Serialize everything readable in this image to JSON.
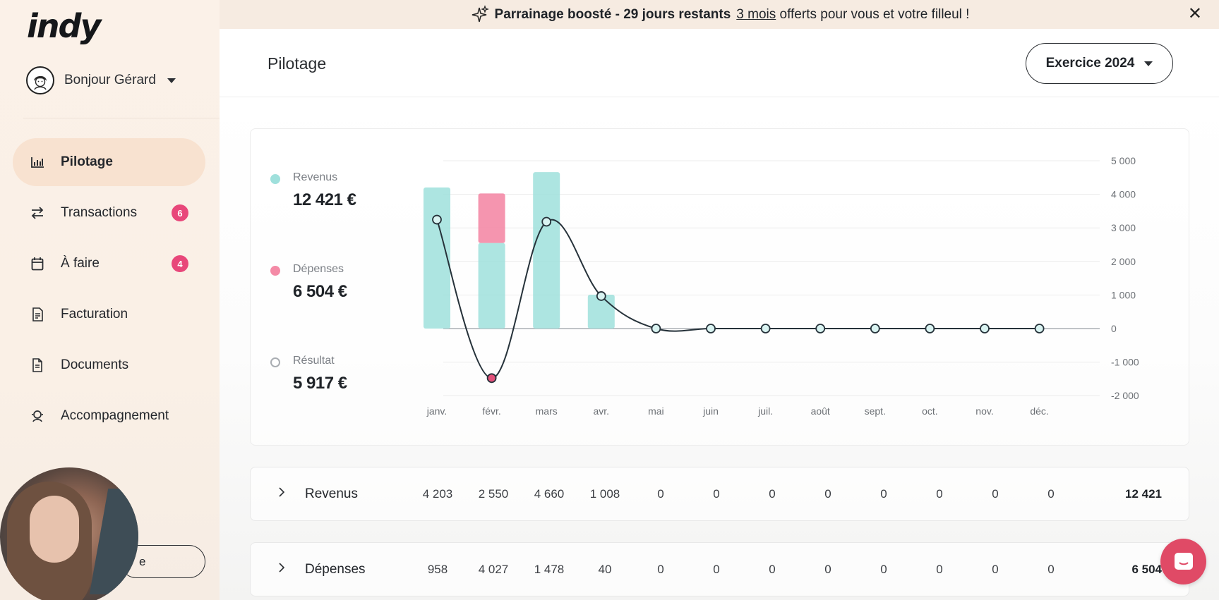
{
  "app": {
    "logo": "indy"
  },
  "user": {
    "greeting": "Bonjour Gérard"
  },
  "banner": {
    "bold": "Parrainage boosté - 29 jours restants",
    "link": "3 mois",
    "rest": "offerts pour vous et votre filleul !",
    "close_glyph": "✕"
  },
  "sidebar": {
    "items": [
      {
        "label": "Pilotage",
        "icon": "bar-chart-icon",
        "active": true
      },
      {
        "label": "Transactions",
        "icon": "swap-arrows-icon",
        "badge": "6"
      },
      {
        "label": "À faire",
        "icon": "calendar-icon",
        "badge": "4"
      },
      {
        "label": "Facturation",
        "icon": "invoice-icon"
      },
      {
        "label": "Documents",
        "icon": "document-icon"
      },
      {
        "label": "Accompagnement",
        "icon": "support-icon"
      }
    ],
    "bottom_button": "e"
  },
  "header": {
    "title": "Pilotage",
    "year_button": "Exercice 2024"
  },
  "summary": {
    "revenus_label": "Revenus",
    "revenus_value": "12 421 €",
    "depenses_label": "Dépenses",
    "depenses_value": "6 504 €",
    "resultat_label": "Résultat",
    "resultat_value": "5 917 €"
  },
  "colors": {
    "revenus": "#9fe0dc",
    "depenses": "#f48aa6",
    "line": "#26323a",
    "badge": "#e8477a",
    "chat": "#e04a66"
  },
  "chart_data": {
    "type": "bar",
    "categories": [
      "janv.",
      "févr.",
      "mars",
      "avr.",
      "mai",
      "juin",
      "juil.",
      "août",
      "sept.",
      "oct.",
      "nov.",
      "déc."
    ],
    "series": [
      {
        "name": "Revenus",
        "values": [
          4203,
          2550,
          4660,
          1008,
          0,
          0,
          0,
          0,
          0,
          0,
          0,
          0
        ],
        "kind": "bar"
      },
      {
        "name": "Dépenses",
        "values": [
          958,
          4027,
          1478,
          40,
          0,
          0,
          0,
          0,
          0,
          0,
          0,
          0
        ],
        "kind": "bar"
      },
      {
        "name": "Résultat",
        "values": [
          3245,
          -1477,
          3182,
          968,
          0,
          0,
          0,
          0,
          0,
          0,
          0,
          0
        ],
        "kind": "line"
      }
    ],
    "y_ticks": [
      "5 000",
      "4 000",
      "3 000",
      "2 000",
      "1 000",
      "0",
      "-1 000",
      "-2 000"
    ],
    "ylim": [
      -2000,
      5000
    ],
    "y_axis_side": "right",
    "grid": true
  },
  "table": {
    "rows": [
      {
        "label": "Revenus",
        "values": [
          "4 203",
          "2 550",
          "4 660",
          "1 008",
          "0",
          "0",
          "0",
          "0",
          "0",
          "0",
          "0",
          "0"
        ],
        "total": "12 421"
      },
      {
        "label": "Dépenses",
        "values": [
          "958",
          "4 027",
          "1 478",
          "40",
          "0",
          "0",
          "0",
          "0",
          "0",
          "0",
          "0",
          "0"
        ],
        "total": "6 504"
      }
    ]
  }
}
